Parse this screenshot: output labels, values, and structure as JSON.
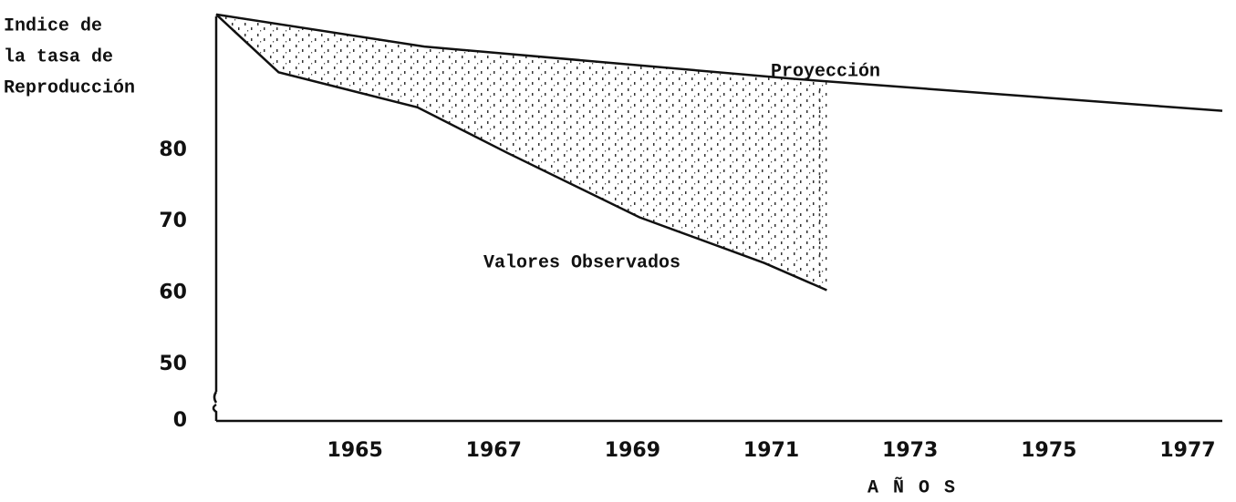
{
  "chart_data": {
    "type": "line",
    "y_label": [
      "Indice de",
      "la tasa de",
      "Reproducción"
    ],
    "x_label": "A Ñ O S",
    "series": [
      {
        "name": "Proyección",
        "color": "#111111",
        "x": [
          1963,
          1966,
          1971.3,
          1977.5
        ],
        "values": [
          99,
          94.5,
          90,
          85.5
        ]
      },
      {
        "name": "Valores Observados",
        "color": "#111111",
        "x": [
          1963,
          1963.9,
          1965.9,
          1967.2,
          1969.1,
          1970.9,
          1971.8
        ],
        "values": [
          99,
          90.9,
          86,
          79.6,
          70.6,
          64.2,
          60.4
        ]
      }
    ],
    "xlim": [
      1963,
      1977.5
    ],
    "xticks": [
      1965,
      1967,
      1969,
      1971,
      1973,
      1975,
      1977
    ],
    "ylim": [
      0,
      100
    ],
    "yticks": [
      0,
      50,
      60,
      70,
      80
    ],
    "axis_break": true,
    "shade_between": true,
    "grid": false
  }
}
